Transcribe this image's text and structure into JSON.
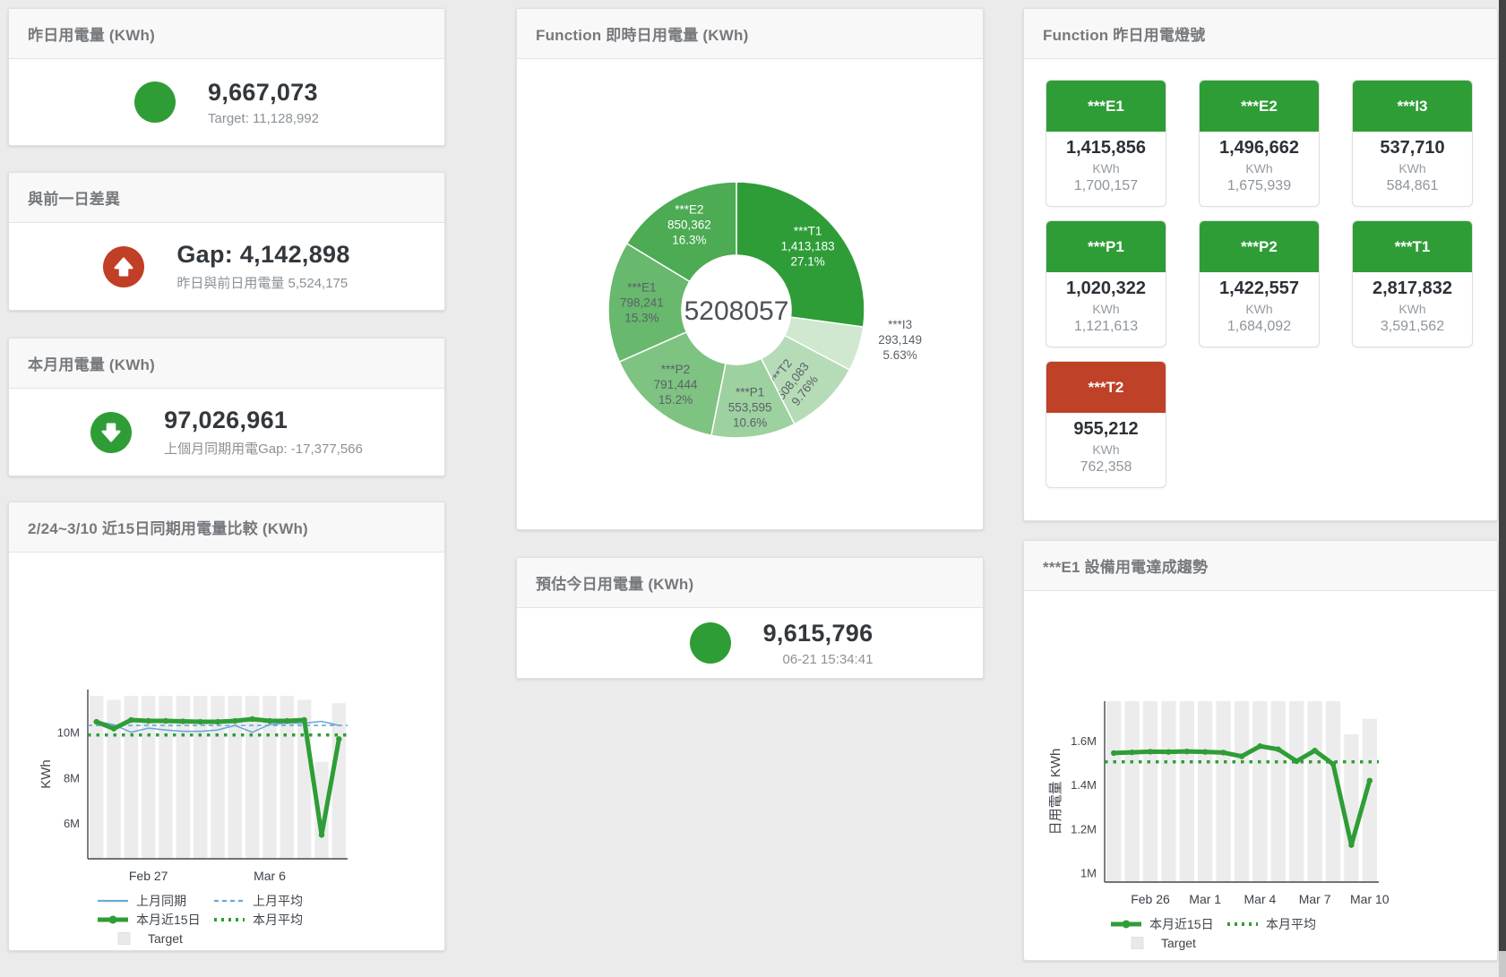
{
  "colors": {
    "green": "#2f9d36",
    "red": "#c13e27",
    "blue": "#6aa9d8",
    "target_bar": "#ececec",
    "title_text": "#76797d",
    "value_text": "#33383d",
    "muted_text": "#8b9197",
    "axis_text": "#40464d"
  },
  "cards": {
    "yesterday": {
      "title": "昨日用電量 (KWh)",
      "value": "9,667,073",
      "subtitle": "Target: 11,128,992"
    },
    "diff": {
      "title": "與前一日差異",
      "value": "Gap: 4,142,898",
      "subtitle": "昨日與前日用電量 5,524,175"
    },
    "month": {
      "title": "本月用電量 (KWh)",
      "value": "97,026,961",
      "subtitle": "上個月同期用電Gap: -17,377,566"
    },
    "compare": {
      "title": "2/24~3/10 近15日同期用電量比較 (KWh)"
    },
    "donut": {
      "title": "Function 即時日用電量 (KWh)"
    },
    "estimate": {
      "title": "預估今日用電量 (KWh)",
      "value": "9,615,796",
      "subtitle": "06-21 15:34:41"
    },
    "lights": {
      "title": "Function 昨日用電燈號",
      "tiles": [
        {
          "label": "***E1",
          "value": "1,415,856",
          "unit": "KWh",
          "target": "1,700,157",
          "status": "green"
        },
        {
          "label": "***E2",
          "value": "1,496,662",
          "unit": "KWh",
          "target": "1,675,939",
          "status": "green"
        },
        {
          "label": "***I3",
          "value": "537,710",
          "unit": "KWh",
          "target": "584,861",
          "status": "green"
        },
        {
          "label": "***P1",
          "value": "1,020,322",
          "unit": "KWh",
          "target": "1,121,613",
          "status": "green"
        },
        {
          "label": "***P2",
          "value": "1,422,557",
          "unit": "KWh",
          "target": "1,684,092",
          "status": "green"
        },
        {
          "label": "***T1",
          "value": "2,817,832",
          "unit": "KWh",
          "target": "3,591,562",
          "status": "green"
        },
        {
          "label": "***T2",
          "value": "955,212",
          "unit": "KWh",
          "target": "762,358",
          "status": "red"
        }
      ]
    },
    "trend": {
      "title": "***E1 設備用電達成趨勢"
    }
  },
  "chart_data": [
    {
      "id": "donut-realtime",
      "type": "pie",
      "title": "Function 即時日用電量 (KWh)",
      "center_label": "5208057",
      "slices": [
        {
          "name": "***T1",
          "value": 1413183,
          "display": "1,413,183",
          "pct": "27.1%",
          "color": "#2e9d38",
          "text": "#ffffff",
          "label_r": 0.74,
          "da": 0
        },
        {
          "name": "***I3",
          "value": 293149,
          "display": "293,149",
          "pct": "5.63%",
          "color": "#cfe8cf",
          "text": "#5a6168",
          "label_r": 1.3,
          "da": -7
        },
        {
          "name": "***T2",
          "value": 508083,
          "display": "508,083",
          "pct": "9.76%",
          "color": "#b6dcb7",
          "text": "#5a6168",
          "label_r": 0.72,
          "da": 6,
          "rotate": -52
        },
        {
          "name": "***P1",
          "value": 553595,
          "display": "553,595",
          "pct": "10.6%",
          "color": "#9dd19f",
          "text": "#5a6168",
          "label_r": 0.78,
          "da": 0
        },
        {
          "name": "***P2",
          "value": 791444,
          "display": "791,444",
          "pct": "15.2%",
          "color": "#7ec381",
          "text": "#5a6168",
          "label_r": 0.76,
          "da": 0
        },
        {
          "name": "***E1",
          "value": 798241,
          "display": "798,241",
          "pct": "15.3%",
          "color": "#68b86d",
          "text": "#5a6168",
          "label_r": 0.74,
          "da": 0
        },
        {
          "name": "***E2",
          "value": 850362,
          "display": "850,362",
          "pct": "16.3%",
          "color": "#4cab53",
          "text": "#ffffff",
          "label_r": 0.75,
          "da": 0
        }
      ]
    },
    {
      "id": "compare-15day",
      "type": "line",
      "title": "2/24~3/10 近15日同期用電量比較 (KWh)",
      "ylabel": "KWh",
      "ymin": 4.45,
      "ymax": 11.9,
      "yticks": [
        {
          "v": 6,
          "label": "6M"
        },
        {
          "v": 8,
          "label": "8M"
        },
        {
          "v": 10,
          "label": "10M"
        }
      ],
      "xticks": [
        {
          "i": 3,
          "label": "Feb 27"
        },
        {
          "i": 10,
          "label": "Mar 6"
        }
      ],
      "bars": {
        "name": "Target",
        "color": "#ececec",
        "values": [
          11.62,
          11.45,
          11.62,
          11.62,
          11.62,
          11.62,
          11.62,
          11.62,
          11.62,
          11.62,
          11.62,
          11.62,
          11.45,
          8.72,
          11.3
        ]
      },
      "series": [
        {
          "name": "上月同期",
          "color": "#6aa9d8",
          "width": 1.6,
          "dash": "",
          "markers": false,
          "values": [
            10.5,
            10.35,
            10.02,
            10.2,
            10.12,
            10.06,
            10.06,
            10.12,
            10.32,
            10.02,
            10.36,
            10.42,
            10.42,
            10.5,
            10.32
          ]
        },
        {
          "name": "上月平均",
          "color": "#6aa9d8",
          "width": 1.6,
          "dash": "5 4",
          "markers": false,
          "flat": 10.32
        },
        {
          "name": "本月平均",
          "color": "#2f9d36",
          "width": 3.5,
          "dash": "3.5 6",
          "markers": false,
          "flat": 9.9
        },
        {
          "name": "本月近15日",
          "color": "#2f9d36",
          "width": 5,
          "dash": "",
          "markers": true,
          "values": [
            10.48,
            10.18,
            10.56,
            10.52,
            10.52,
            10.5,
            10.48,
            10.48,
            10.52,
            10.6,
            10.52,
            10.52,
            10.56,
            5.5,
            9.72
          ]
        }
      ],
      "legend": [
        [
          {
            "style": "solid",
            "color": "#6aa9d8",
            "label": "上月同期"
          },
          {
            "style": "dashed",
            "color": "#6aa9d8",
            "label": "上月平均"
          }
        ],
        [
          {
            "style": "thick",
            "color": "#2f9d36",
            "label": "本月近15日"
          },
          {
            "style": "dotted",
            "color": "#2f9d36",
            "label": "本月平均"
          }
        ],
        [
          {
            "style": "square",
            "color": "#e9e9e9",
            "label": "Target",
            "indent": true
          }
        ]
      ]
    },
    {
      "id": "e1-trend",
      "type": "line",
      "title": "***E1 設備用電達成趨勢",
      "ylabel": "日用電量 KWh",
      "ymin": 0.96,
      "ymax": 1.78,
      "yticks": [
        {
          "v": 1,
          "label": "1M"
        },
        {
          "v": 1.2,
          "label": "1.2M"
        },
        {
          "v": 1.4,
          "label": "1.4M"
        },
        {
          "v": 1.6,
          "label": "1.6M"
        }
      ],
      "xticks": [
        {
          "i": 2,
          "label": "Feb 26"
        },
        {
          "i": 5,
          "label": "Mar 1"
        },
        {
          "i": 8,
          "label": "Mar 4"
        },
        {
          "i": 11,
          "label": "Mar 7"
        },
        {
          "i": 14,
          "label": "Mar 10"
        }
      ],
      "bars": {
        "name": "Target",
        "color": "#ececec",
        "values": [
          1.78,
          1.78,
          1.78,
          1.78,
          1.78,
          1.78,
          1.78,
          1.78,
          1.78,
          1.78,
          1.78,
          1.78,
          1.78,
          1.63,
          1.7
        ]
      },
      "series": [
        {
          "name": "本月平均",
          "color": "#2f9d36",
          "width": 3.5,
          "dash": "3.5 6",
          "markers": false,
          "flat": 1.505
        },
        {
          "name": "本月近15日",
          "color": "#2f9d36",
          "width": 5,
          "dash": "",
          "markers": true,
          "values": [
            1.545,
            1.548,
            1.551,
            1.55,
            1.552,
            1.55,
            1.547,
            1.53,
            1.576,
            1.562,
            1.508,
            1.556,
            1.495,
            1.128,
            1.42
          ]
        }
      ],
      "legend": [
        [
          {
            "style": "thick",
            "color": "#2f9d36",
            "label": "本月近15日"
          },
          {
            "style": "dotted",
            "color": "#2f9d36",
            "label": "本月平均"
          }
        ],
        [
          {
            "style": "square",
            "color": "#e9e9e9",
            "label": "Target",
            "indent": true
          }
        ]
      ]
    }
  ]
}
